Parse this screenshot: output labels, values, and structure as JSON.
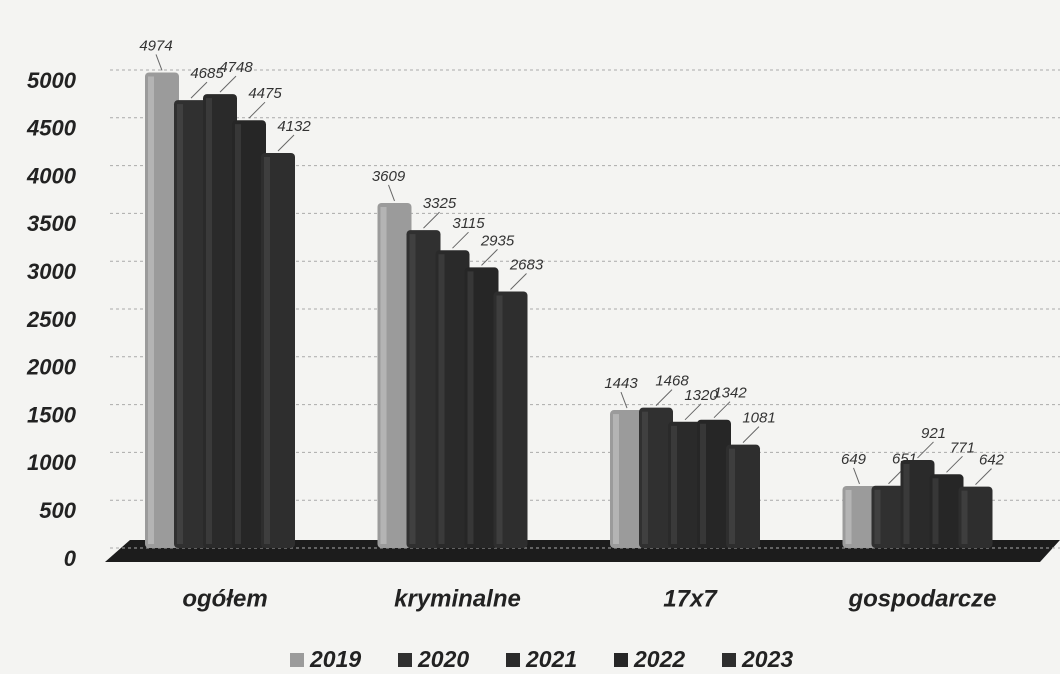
{
  "chart_data": {
    "type": "bar",
    "categories": [
      "ogółem",
      "kryminalne",
      "17x7",
      "gospodarcze"
    ],
    "series": [
      {
        "name": "2019",
        "color": "#9b9b9b",
        "values": [
          4974,
          3609,
          1443,
          649
        ]
      },
      {
        "name": "2020",
        "color": "#303030",
        "values": [
          4685,
          3325,
          1468,
          651
        ]
      },
      {
        "name": "2021",
        "color": "#2a2a2a",
        "values": [
          4748,
          3115,
          1320,
          921
        ]
      },
      {
        "name": "2022",
        "color": "#262626",
        "values": [
          4475,
          2935,
          1342,
          771
        ]
      },
      {
        "name": "2023",
        "color": "#2e2e2e",
        "values": [
          4132,
          2683,
          1081,
          642
        ]
      }
    ],
    "ylim": [
      0,
      5000
    ],
    "yticks": [
      0,
      500,
      1000,
      1500,
      2000,
      2500,
      3000,
      3500,
      4000,
      4500,
      5000
    ],
    "grid": true,
    "legend": "bottom"
  }
}
